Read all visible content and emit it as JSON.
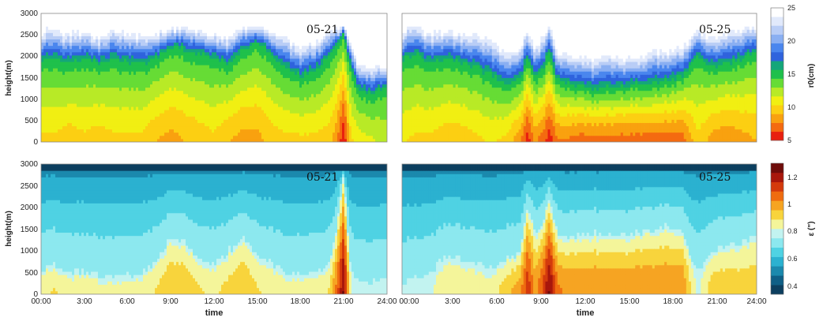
{
  "chart_data": [
    {
      "type": "heatmap",
      "panel": "top-left",
      "annotation": "05-21",
      "ylabel": "height(m)",
      "xlabel": "",
      "xlim": [
        0,
        24
      ],
      "ylim": [
        0,
        3000
      ],
      "yticks": [
        0,
        500,
        1000,
        1500,
        2000,
        2500,
        3000
      ],
      "variable": "r0",
      "profile_hours": [
        0,
        1,
        2,
        3,
        4,
        5,
        6,
        7,
        8,
        9,
        10,
        11,
        12,
        13,
        14,
        15,
        16,
        17,
        18,
        19,
        20,
        20.5,
        21,
        21.5,
        22,
        23,
        24
      ],
      "surface_values": [
        10,
        10,
        9.5,
        10,
        9.5,
        10,
        10,
        10,
        9,
        8.5,
        9,
        9.5,
        10,
        9,
        8.5,
        8.5,
        9.5,
        10,
        10,
        10,
        9.5,
        8,
        5,
        10,
        11,
        11.5,
        12
      ],
      "top_height": [
        2700,
        2700,
        2600,
        2700,
        2500,
        2700,
        2600,
        2600,
        2600,
        2700,
        2750,
        2700,
        2600,
        2550,
        2700,
        2800,
        2700,
        2500,
        2300,
        2400,
        2650,
        2700,
        2700,
        2400,
        1800,
        1800,
        1800
      ],
      "green_top": [
        1900,
        1900,
        1800,
        1900,
        1800,
        1900,
        1800,
        1800,
        1900,
        2200,
        2100,
        2000,
        1900,
        1800,
        2100,
        2300,
        2000,
        1700,
        1500,
        1600,
        2000,
        2300,
        2500,
        1700,
        1200,
        1100,
        1300
      ]
    },
    {
      "type": "heatmap",
      "panel": "top-right",
      "annotation": "05-25",
      "xlim": [
        0,
        24
      ],
      "ylim": [
        0,
        3000
      ],
      "variable": "r0",
      "profile_hours": [
        0,
        1,
        2,
        3,
        4,
        5,
        6,
        7,
        8,
        8.5,
        9,
        9.5,
        10,
        10.5,
        11,
        12,
        13,
        14,
        15,
        16,
        17,
        18,
        19,
        20,
        21,
        22,
        23,
        24
      ],
      "surface_values": [
        10.5,
        10,
        10,
        9.5,
        9.5,
        10,
        10.5,
        10,
        8,
        5.5,
        8,
        7,
        5.5,
        7.5,
        7.5,
        7,
        7,
        7,
        7,
        7,
        7,
        7,
        7,
        10,
        8.5,
        8,
        8.5,
        9
      ],
      "top_height": [
        2700,
        2800,
        2600,
        2700,
        2600,
        2600,
        2500,
        2200,
        2300,
        2700,
        2300,
        2500,
        2800,
        2200,
        2200,
        2100,
        2050,
        2100,
        2050,
        2100,
        2200,
        2200,
        2300,
        2700,
        2500,
        2600,
        2700,
        2800
      ],
      "green_top": [
        1900,
        2000,
        1800,
        1900,
        1800,
        1700,
        1500,
        1300,
        1400,
        1900,
        1500,
        1600,
        2100,
        1400,
        1300,
        1250,
        1200,
        1200,
        1250,
        1300,
        1350,
        1400,
        1500,
        2000,
        1700,
        1800,
        1900,
        2100
      ]
    },
    {
      "type": "heatmap",
      "panel": "bottom-left",
      "annotation": "05-21",
      "ylabel": "height(m)",
      "xlabel": "time",
      "xlim": [
        0,
        24
      ],
      "ylim": [
        0,
        3000
      ],
      "yticks": [
        0,
        500,
        1000,
        1500,
        2000,
        2500,
        3000
      ],
      "xticks": [
        "00:00",
        "3:00",
        "6:00",
        "9:00",
        "12:00",
        "15:00",
        "18:00",
        "21:00",
        "24:00"
      ],
      "variable": "epsilon",
      "profile_hours": [
        0,
        1,
        2,
        3,
        4,
        5,
        6,
        7,
        8,
        9,
        10,
        11,
        12,
        13,
        14,
        15,
        16,
        17,
        18,
        19,
        20,
        20.5,
        21,
        21.5,
        22,
        23,
        24
      ],
      "surface_values": [
        0.88,
        0.9,
        0.86,
        0.87,
        0.85,
        0.84,
        0.85,
        0.86,
        0.9,
        0.96,
        0.95,
        0.9,
        0.88,
        0.92,
        0.96,
        0.9,
        0.87,
        0.86,
        0.86,
        0.86,
        0.9,
        1.05,
        1.25,
        0.82,
        0.78,
        0.78,
        0.8
      ],
      "layer_top": [
        600,
        700,
        500,
        550,
        450,
        400,
        450,
        500,
        800,
        1300,
        1200,
        800,
        700,
        1000,
        1300,
        900,
        700,
        500,
        500,
        500,
        700,
        1500,
        2800,
        500,
        300,
        300,
        350
      ]
    },
    {
      "type": "heatmap",
      "panel": "bottom-right",
      "annotation": "05-25",
      "xlabel": "time",
      "xlim": [
        0,
        24
      ],
      "ylim": [
        0,
        3000
      ],
      "xticks": [
        "00:00",
        "3:00",
        "6:00",
        "9:00",
        "12:00",
        "15:00",
        "18:00",
        "21:00",
        "24:00"
      ],
      "variable": "epsilon",
      "profile_hours": [
        0,
        1,
        2,
        3,
        4,
        5,
        6,
        7,
        8,
        8.5,
        9,
        9.5,
        10,
        10.5,
        11,
        12,
        13,
        14,
        15,
        16,
        17,
        18,
        19,
        20,
        21,
        22,
        23,
        24
      ],
      "surface_values": [
        0.78,
        0.8,
        0.82,
        0.88,
        0.88,
        0.86,
        0.84,
        0.94,
        1.0,
        1.15,
        1.0,
        1.1,
        1.25,
        1.05,
        1.02,
        1.02,
        1.02,
        1.02,
        1.02,
        1.02,
        1.02,
        1.02,
        1.02,
        0.8,
        0.94,
        0.94,
        0.94,
        0.94
      ],
      "layer_top": [
        300,
        400,
        500,
        900,
        800,
        700,
        600,
        800,
        1000,
        2100,
        1400,
        1600,
        2200,
        1400,
        1300,
        1350,
        1400,
        1350,
        1350,
        1400,
        1500,
        1600,
        1400,
        500,
        1000,
        1100,
        1200,
        1300
      ]
    }
  ],
  "colorbars": {
    "r0": {
      "label": "r0(cm)",
      "ticks": [
        5,
        10,
        15,
        20,
        25
      ],
      "range": [
        5,
        25
      ]
    },
    "epsilon": {
      "label": "ε (\")",
      "ticks": [
        0.4,
        0.6,
        0.8,
        1,
        1.2
      ],
      "range": [
        0.35,
        1.3
      ]
    }
  },
  "palettes": {
    "r0": [
      "#e8200f",
      "#f46a10",
      "#f9a10f",
      "#fccf12",
      "#f1ef12",
      "#b8ea26",
      "#66dc35",
      "#1fc04b",
      "#14a67a",
      "#2f63dd",
      "#4a86ee",
      "#8aaff2",
      "#b9cdf6",
      "#e1e9fb",
      "#ffffff"
    ],
    "epsilon": [
      "#0c3f5f",
      "#0f5f86",
      "#1b89ad",
      "#2bb1d0",
      "#4fd2e3",
      "#8ce8ef",
      "#c2f3f0",
      "#f4f59a",
      "#f8d43c",
      "#f6a422",
      "#ef6c10",
      "#d43a0c",
      "#a8170c",
      "#6e0c0a"
    ]
  }
}
